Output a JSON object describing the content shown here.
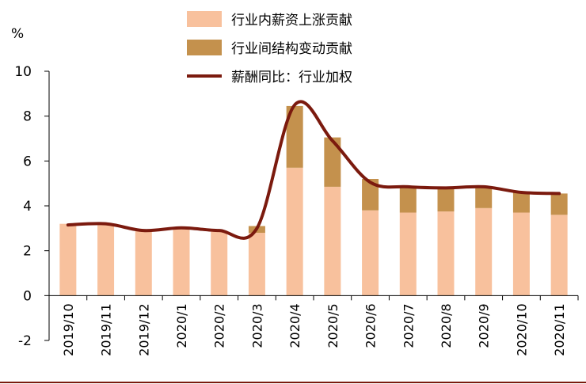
{
  "chart_data": {
    "type": "bar+line",
    "y_unit": "%",
    "ylim": [
      -2,
      10
    ],
    "yticks": [
      -2,
      0,
      2,
      4,
      6,
      8,
      10
    ],
    "categories": [
      "2019/10",
      "2019/11",
      "2019/12",
      "2020/1",
      "2020/2",
      "2020/3",
      "2020/4",
      "2020/5",
      "2020/6",
      "2020/7",
      "2020/8",
      "2020/9",
      "2020/10",
      "2020/11"
    ],
    "series": [
      {
        "name": "行业内薪资上涨贡献",
        "kind": "stacked-bar",
        "color": "#F8C19D",
        "values": [
          3.2,
          3.15,
          2.9,
          3.0,
          2.9,
          2.8,
          5.7,
          4.85,
          3.8,
          3.7,
          3.75,
          3.9,
          3.7,
          3.6
        ]
      },
      {
        "name": "行业间结构变动贡献",
        "kind": "stacked-bar",
        "color": "#C4914D",
        "values": [
          0.0,
          0.0,
          0.0,
          0.0,
          0.0,
          0.3,
          2.75,
          2.2,
          1.4,
          1.1,
          1.05,
          0.95,
          0.9,
          0.95
        ]
      },
      {
        "name": "薪酬同比：行业加权",
        "kind": "line",
        "color": "#7B1A0E",
        "values": [
          3.15,
          3.2,
          2.9,
          3.02,
          2.9,
          3.0,
          8.5,
          6.9,
          5.05,
          4.85,
          4.8,
          4.85,
          4.6,
          4.55
        ]
      }
    ]
  }
}
